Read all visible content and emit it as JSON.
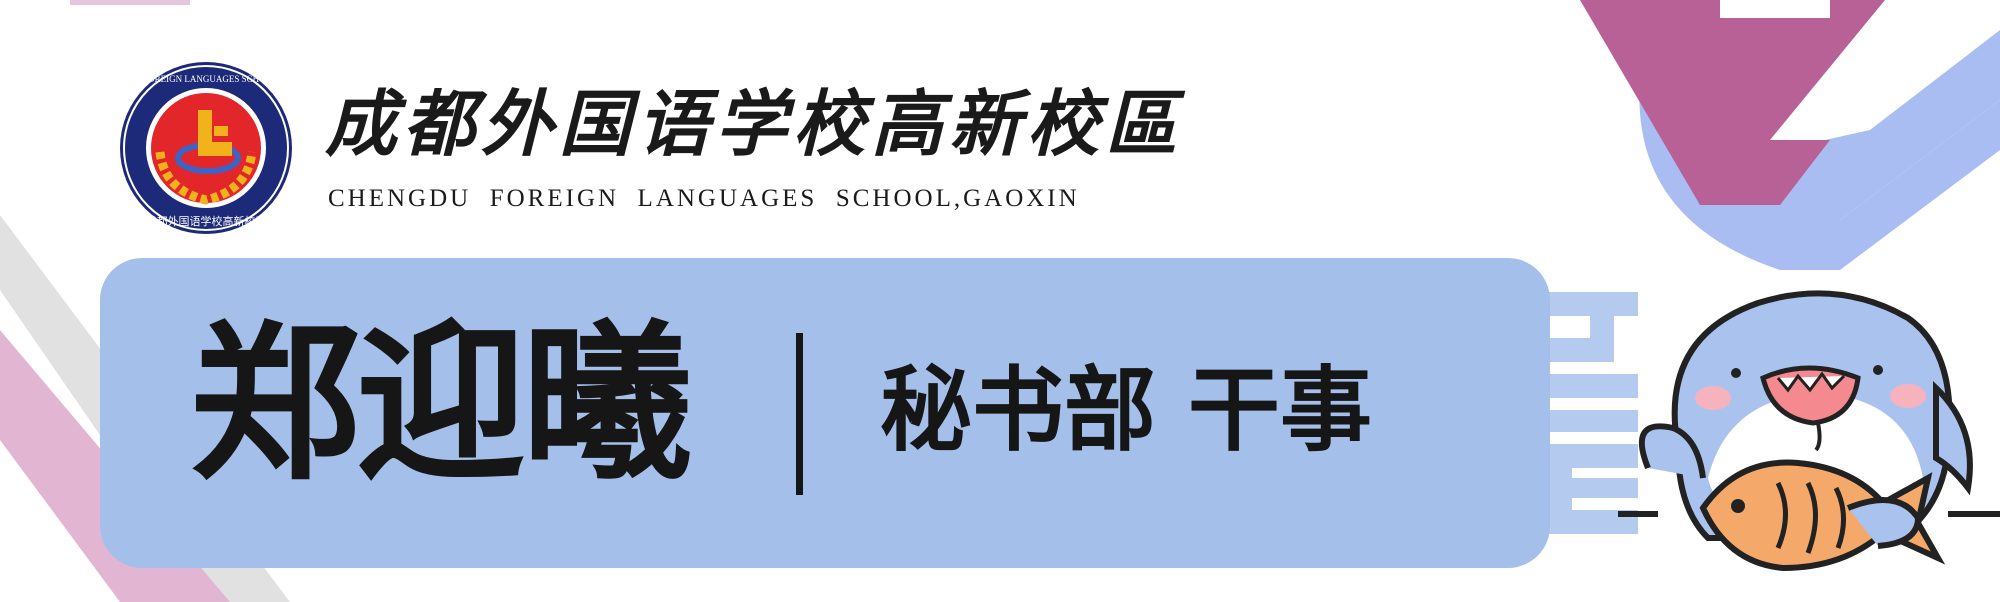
{
  "header": {
    "emblem": {
      "ring_text": "CHENGDU FOREIGN LANGUAGES SCHOOL GAOXIN",
      "ring_text_cn": "成都外国语学校高新校区",
      "colors": {
        "ring": "#1d2a7a",
        "inner": "#e3262a",
        "wheat": "#f2b21b"
      }
    },
    "school_name_cn": "成都外国语学校高新校區",
    "school_name_en": "CHENGDU  FOREIGN  LANGUAGES  SCHOOL,GAOXIN"
  },
  "card": {
    "name": "郑迎曦",
    "role": "秘书部 干事",
    "colors": {
      "panel": "#a4c0ea",
      "text": "#161616"
    }
  },
  "decoration": {
    "mascot_icon": "shark-holding-fish-icon",
    "colors": {
      "blue": "#a9bdf2",
      "mauve": "#b86196",
      "pink": "#e2b6d2",
      "gray": "#dcdcdc"
    }
  }
}
